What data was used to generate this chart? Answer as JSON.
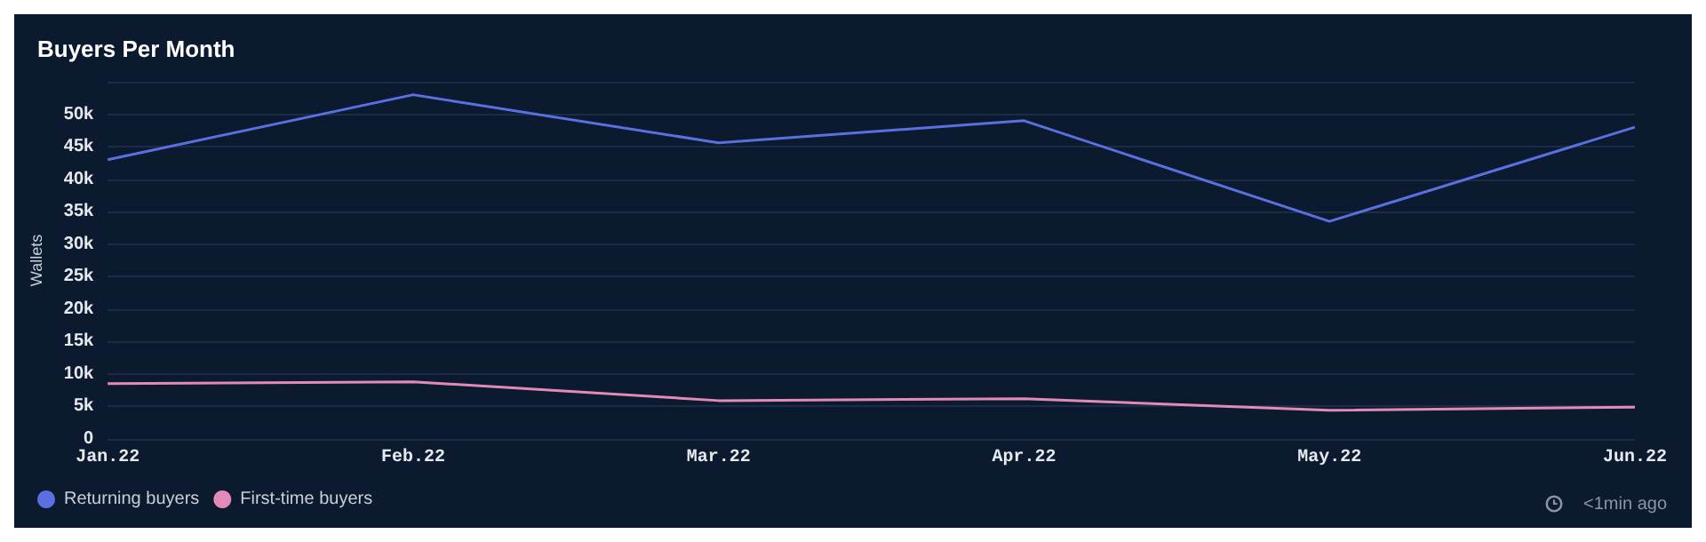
{
  "chart_data": {
    "type": "line",
    "title": "Buyers Per Month",
    "ylabel": "Wallets",
    "categories": [
      "Jan.22",
      "Feb.22",
      "Mar.22",
      "Apr.22",
      "May.22",
      "Jun.22"
    ],
    "series": [
      {
        "name": "Returning buyers",
        "color": "#5a6fe0",
        "values": [
          43000,
          53000,
          45600,
          49000,
          33500,
          48000
        ]
      },
      {
        "name": "First-time buyers",
        "color": "#e48ab8",
        "values": [
          8500,
          8800,
          5900,
          6200,
          4400,
          4900
        ]
      }
    ],
    "ylim": [
      0,
      55000
    ],
    "yticks": [
      0,
      {
        "value": 5000,
        "label": "5k"
      },
      {
        "value": 10000,
        "label": "10k"
      },
      {
        "value": 15000,
        "label": "15k"
      },
      {
        "value": 20000,
        "label": "20k"
      },
      {
        "value": 25000,
        "label": "25k"
      },
      {
        "value": 30000,
        "label": "30k"
      },
      {
        "value": 35000,
        "label": "35k"
      },
      {
        "value": 40000,
        "label": "40k"
      },
      {
        "value": 45000,
        "label": "45k"
      },
      {
        "value": 50000,
        "label": "50k"
      },
      {
        "value": 55000,
        "label": null
      }
    ],
    "grid": "y",
    "legend": "bottom left",
    "marker": "none",
    "line_style": "solid",
    "annotations": [
      "<1min ago"
    ]
  }
}
